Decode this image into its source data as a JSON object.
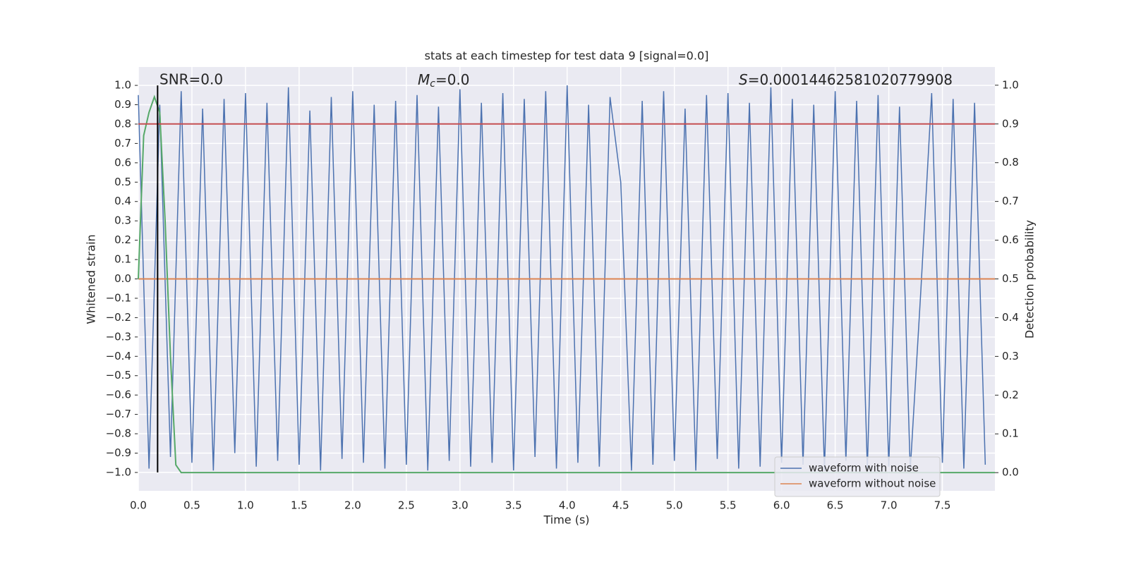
{
  "chart_data": {
    "type": "line",
    "title": "stats at each timestep for test data 9 [signal=0.0]",
    "xlabel": "Time (s)",
    "ylabel": "Whitened strain",
    "y2label": "Detection probability",
    "annotations": [
      {
        "text": "SNR=0.0"
      },
      {
        "symbol": "M",
        "subscript": "c",
        "text": "=0.0"
      },
      {
        "symbol": "S",
        "text": "=0.00014462581020779908"
      }
    ],
    "xlim": [
      0,
      7.99
    ],
    "ylim": [
      -1.095,
      1.095
    ],
    "y2lim": [
      -0.047,
      1.047
    ],
    "xticks": [
      {
        "value": 0,
        "label": "0.0"
      },
      0.5,
      {
        "value": 1,
        "label": "1.0"
      },
      1.5,
      {
        "value": 2,
        "label": "2.0"
      },
      2.5,
      {
        "value": 3,
        "label": "3.0"
      },
      3.5,
      {
        "value": 4,
        "label": "4.0"
      },
      4.5,
      {
        "value": 5,
        "label": "5.0"
      },
      5.5,
      {
        "value": 6,
        "label": "6.0"
      },
      6.5,
      {
        "value": 7,
        "label": "7.0"
      },
      7.5
    ],
    "yticks": [
      {
        "value": -1,
        "label": "−1.0"
      },
      {
        "value": -0.9,
        "label": "−0.9"
      },
      {
        "value": -0.8,
        "label": "−0.8"
      },
      {
        "value": -0.7,
        "label": "−0.7"
      },
      {
        "value": -0.6,
        "label": "−0.6"
      },
      {
        "value": -0.5,
        "label": "−0.5"
      },
      {
        "value": -0.4,
        "label": "−0.4"
      },
      {
        "value": -0.3,
        "label": "−0.3"
      },
      {
        "value": -0.2,
        "label": "−0.2"
      },
      {
        "value": -0.1,
        "label": "−0.1"
      },
      {
        "value": 0,
        "label": "0.0"
      },
      0.1,
      0.2,
      0.3,
      0.4,
      0.5,
      0.6,
      0.7,
      0.8,
      0.9,
      {
        "value": 1,
        "label": "1.0"
      }
    ],
    "y2ticks": [
      {
        "value": 0,
        "label": "0.0"
      },
      0.1,
      0.2,
      0.3,
      0.4,
      0.5,
      0.6,
      0.7,
      0.8,
      0.9,
      {
        "value": 1,
        "label": "1.0"
      }
    ],
    "grid": true,
    "legend": "lower right",
    "threshold": {
      "value": 0.9,
      "axis": "y2",
      "color": "#c44e52"
    },
    "marker_x": 0.18,
    "series": [
      {
        "name": "waveform with noise",
        "color": "#4c72b0",
        "x": [
          0,
          0.1,
          0.2,
          0.3,
          0.4,
          0.5,
          0.6,
          0.7,
          0.8,
          0.9,
          1,
          1.1,
          1.2,
          1.3,
          1.4,
          1.5,
          1.6,
          1.7,
          1.8,
          1.9,
          2,
          2.1,
          2.2,
          2.3,
          2.4,
          2.5,
          2.6,
          2.7,
          2.8,
          2.9,
          3,
          3.1,
          3.2,
          3.3,
          3.4,
          3.5,
          3.6,
          3.7,
          3.8,
          3.9,
          4,
          4.1,
          4.2,
          4.3,
          4.4,
          4.5,
          4.6,
          4.7,
          4.8,
          4.9,
          5,
          5.1,
          5.2,
          5.3,
          5.4,
          5.5,
          5.6,
          5.7,
          5.8,
          5.9,
          6,
          6.1,
          6.2,
          6.3,
          6.4,
          6.5,
          6.6,
          6.7,
          6.8,
          6.9,
          7,
          7.1,
          7.2,
          7.3,
          7.4,
          7.5,
          7.6,
          7.7,
          7.8,
          7.9
        ],
        "values": [
          0.95,
          -0.98,
          0.9,
          -0.92,
          0.97,
          -0.95,
          0.88,
          -0.99,
          0.93,
          -0.9,
          0.96,
          -0.97,
          0.91,
          -0.94,
          0.99,
          -0.96,
          0.87,
          -0.99,
          0.94,
          -0.93,
          0.97,
          -0.95,
          0.9,
          -0.98,
          0.92,
          -0.96,
          0.95,
          -0.99,
          0.89,
          -0.94,
          0.98,
          -0.97,
          0.91,
          -0.95,
          0.96,
          -0.99,
          0.93,
          -0.92,
          0.97,
          -0.98,
          1,
          -0.95,
          0.9,
          -0.97,
          0.94,
          0.5,
          -0.99,
          0.92,
          -0.96,
          0.97,
          -0.94,
          0.88,
          -0.99,
          0.95,
          -0.93,
          0.96,
          -0.98,
          0.91,
          -0.97,
          0.99,
          -0.95,
          0.93,
          -0.96,
          0.9,
          -0.99,
          0.97,
          -0.94,
          0.92,
          -0.98,
          0.95,
          -0.97,
          0.89,
          -0.99,
          -0.05,
          0.96,
          -0.95,
          0.93,
          -0.98,
          0.91,
          -0.96
        ]
      },
      {
        "name": "waveform without noise",
        "color": "#dd8452",
        "x": [
          0,
          7.99
        ],
        "values": [
          0,
          0
        ]
      },
      {
        "color": "#55a868",
        "axis": "y2",
        "x": [
          0,
          0.05,
          0.1,
          0.15,
          0.2,
          0.25,
          0.3,
          0.35,
          0.4,
          7.99
        ],
        "values": [
          0.5,
          0.87,
          0.93,
          0.97,
          0.93,
          0.65,
          0.3,
          0.02,
          0,
          0
        ]
      }
    ]
  }
}
